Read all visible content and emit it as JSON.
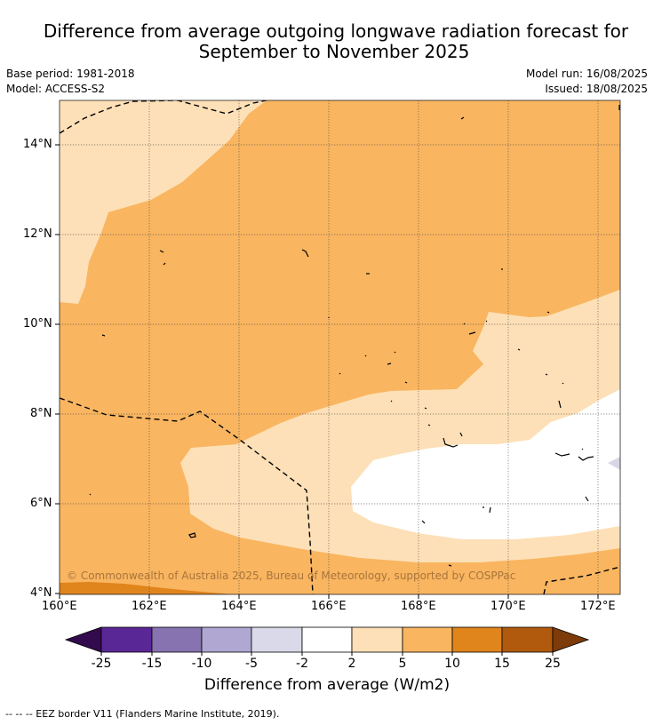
{
  "title_line1": "Difference from average outgoing longwave radiation forecast for",
  "title_line2": "September to November 2025",
  "base_period": "Base period: 1981-2018",
  "model": "Model: ACCESS-S2",
  "model_run": "Model run: 16/08/2025",
  "issued": "Issued: 18/08/2025",
  "lat_labels": [
    "14°N",
    "12°N",
    "10°N",
    "8°N",
    "6°N",
    "4°N"
  ],
  "lon_labels": [
    "160°E",
    "162°E",
    "164°E",
    "166°E",
    "168°E",
    "170°E",
    "172°E"
  ],
  "copyright": "© Commonwealth of Australia 2025, Bureau of Meteorology, supported by COSPPac",
  "colorbar": {
    "title": "Difference from average (W/m2)",
    "labels": [
      "-25",
      "-15",
      "-10",
      "-5",
      "-2",
      "2",
      "5",
      "10",
      "15",
      "25"
    ],
    "colors": [
      "#5a2796",
      "#8673b0",
      "#b0a8d3",
      "#d9d9ea",
      "#ffffff",
      "#fde0b7",
      "#f9b560",
      "#e0841c",
      "#b15a0d"
    ],
    "under_color": "#330a4d",
    "over_color": "#7c3b08"
  },
  "footnote": "--  --  -- EEZ border V11 (Flanders Marine Institute, 2019)."
}
